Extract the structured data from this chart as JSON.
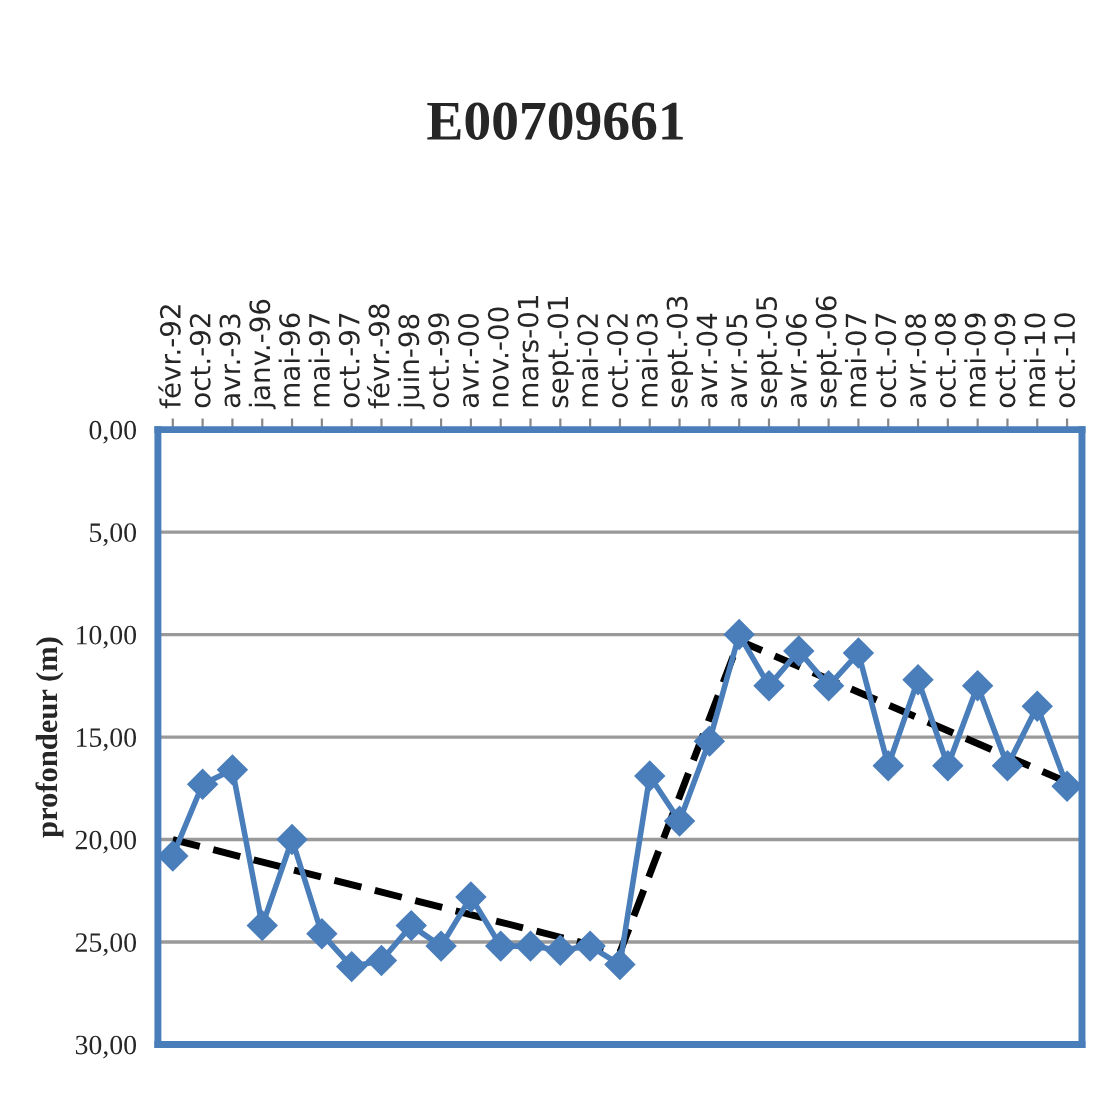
{
  "chart_data": {
    "type": "line",
    "title": "E00709661",
    "ylabel": "profondeur (m)",
    "categories": [
      "févr.-92",
      "oct.-92",
      "avr.-93",
      "janv.-96",
      "mai-96",
      "mai-97",
      "oct.-97",
      "févr.-98",
      "juin-98",
      "oct.-99",
      "avr.-00",
      "nov.-00",
      "mars-01",
      "sept.-01",
      "mai-02",
      "oct.-02",
      "mai-03",
      "sept.-03",
      "avr.-04",
      "avr.-05",
      "sept.-05",
      "avr.-06",
      "sept.-06",
      "mai-07",
      "oct.-07",
      "avr.-08",
      "oct.-08",
      "mai-09",
      "oct.-09",
      "mai-10",
      "oct.-10"
    ],
    "series": [
      {
        "color": "#4a7ebb",
        "marker": "diamond",
        "line_style": "solid",
        "values": [
          20.8,
          17.3,
          16.6,
          24.2,
          20.0,
          24.6,
          26.2,
          25.9,
          24.2,
          25.2,
          22.8,
          25.2,
          25.2,
          25.4,
          25.2,
          26.1,
          16.9,
          19.1,
          15.2,
          10.0,
          12.5,
          10.8,
          12.5,
          10.9,
          16.4,
          12.2,
          16.4,
          12.5,
          16.4,
          13.5,
          17.4
        ]
      },
      {
        "color": "#000000",
        "marker": "none",
        "line_style": "dashed",
        "values": [
          20.0,
          null,
          null,
          null,
          null,
          null,
          null,
          null,
          null,
          null,
          null,
          null,
          null,
          null,
          null,
          25.5,
          null,
          null,
          null,
          10.3,
          null,
          null,
          null,
          null,
          null,
          null,
          null,
          null,
          null,
          null,
          17.2
        ]
      }
    ],
    "ylim": [
      30,
      0
    ],
    "yticks": [
      {
        "value": 0,
        "label": "0,00"
      },
      {
        "value": 5,
        "label": "5,00"
      },
      {
        "value": 10,
        "label": "10,00"
      },
      {
        "value": 15,
        "label": "15,00"
      },
      {
        "value": 20,
        "label": "20,00"
      },
      {
        "value": 25,
        "label": "25,00"
      },
      {
        "value": 30,
        "label": "30,00"
      }
    ],
    "grid": "y"
  }
}
